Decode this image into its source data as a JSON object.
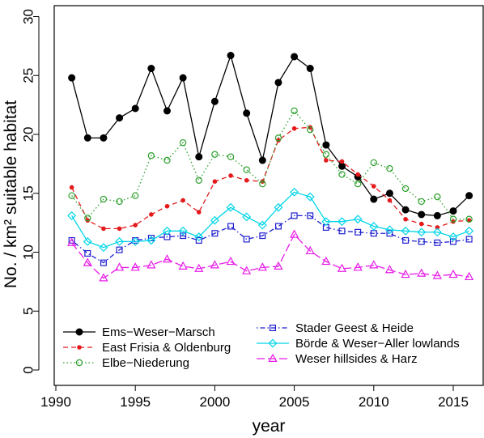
{
  "chart_data": {
    "type": "line",
    "title": "",
    "xlabel": "year",
    "ylabel": "No. / km² suitable habitat",
    "xlim": [
      1990,
      2017
    ],
    "ylim": [
      0,
      30
    ],
    "xticks": [
      1990,
      1995,
      2000,
      2005,
      2010,
      2015
    ],
    "yticks": [
      0,
      5,
      10,
      15,
      20,
      25,
      30
    ],
    "grid": false,
    "legend_position": "bottom-left",
    "x": [
      1991,
      1992,
      1993,
      1994,
      1995,
      1996,
      1997,
      1998,
      1999,
      2000,
      2001,
      2002,
      2003,
      2004,
      2005,
      2006,
      2007,
      2008,
      2009,
      2010,
      2011,
      2012,
      2013,
      2014,
      2015,
      2016
    ],
    "series": [
      {
        "name": "Ems−Weser−Marsch",
        "color": "#000000",
        "dash": "solid",
        "marker": "filled-circle",
        "values": [
          24.8,
          19.7,
          19.7,
          21.4,
          22.2,
          25.6,
          22.0,
          24.8,
          18.1,
          22.8,
          26.7,
          21.8,
          17.8,
          24.4,
          26.6,
          25.6,
          19.1,
          17.3,
          16.4,
          14.5,
          15.0,
          13.6,
          13.2,
          13.1,
          13.5,
          14.8
        ]
      },
      {
        "name": "East Frisia & Oldenburg",
        "color": "#e41a1c",
        "dash": "dashed",
        "marker": "small-dot",
        "values": [
          15.5,
          12.7,
          12.0,
          12.0,
          12.3,
          13.2,
          13.9,
          14.4,
          13.4,
          16.0,
          16.5,
          16.1,
          16.0,
          19.5,
          20.5,
          20.6,
          17.8,
          17.7,
          16.6,
          15.6,
          14.4,
          12.8,
          12.4,
          12.1,
          12.6,
          12.7
        ]
      },
      {
        "name": "Elbe−Niederung",
        "color": "#2ca02c",
        "dash": "dotted",
        "marker": "open-circle",
        "values": [
          14.8,
          12.9,
          14.5,
          14.3,
          14.8,
          18.2,
          17.8,
          19.3,
          16.1,
          18.3,
          18.1,
          17.0,
          15.8,
          19.7,
          22.0,
          20.4,
          18.3,
          16.6,
          15.8,
          17.6,
          17.1,
          15.4,
          14.3,
          14.7,
          12.8,
          12.8
        ]
      },
      {
        "name": "Stader Geest & Heide",
        "color": "#1f1fd0",
        "dash": "dotdash",
        "marker": "open-square",
        "values": [
          11.0,
          9.9,
          9.1,
          10.2,
          11.0,
          11.2,
          11.3,
          11.4,
          11.0,
          11.6,
          12.2,
          11.1,
          11.4,
          12.2,
          13.1,
          13.1,
          12.1,
          11.8,
          11.7,
          11.6,
          11.6,
          11.0,
          10.9,
          10.8,
          10.9,
          11.1
        ]
      },
      {
        "name": "Börde & Weser−Aller lowlands",
        "color": "#00d5e8",
        "dash": "solid",
        "marker": "open-diamond",
        "values": [
          13.1,
          10.9,
          10.4,
          10.9,
          10.9,
          11.0,
          11.8,
          11.8,
          11.3,
          12.7,
          13.8,
          13.0,
          12.3,
          13.8,
          15.1,
          14.7,
          12.6,
          12.6,
          12.8,
          12.2,
          11.9,
          11.8,
          11.7,
          11.7,
          11.3,
          11.8
        ]
      },
      {
        "name": "Weser hillsides & Harz",
        "color": "#e81ce8",
        "dash": "longdash",
        "marker": "open-triangle",
        "values": [
          10.8,
          9.1,
          7.8,
          8.7,
          8.7,
          8.9,
          9.4,
          8.8,
          8.6,
          8.9,
          9.2,
          8.4,
          8.7,
          8.8,
          11.5,
          10.1,
          9.2,
          8.6,
          8.7,
          8.9,
          8.5,
          8.1,
          8.2,
          8.0,
          8.1,
          7.9
        ]
      }
    ]
  }
}
